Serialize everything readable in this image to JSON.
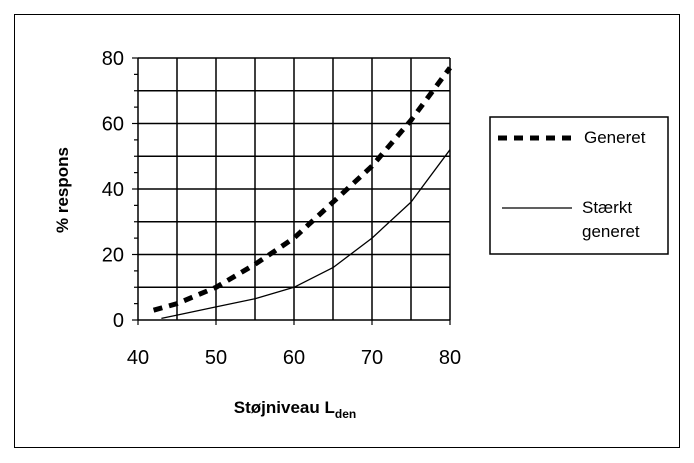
{
  "chart_data": {
    "type": "line",
    "title": "",
    "xlabel": "Støjniveau L",
    "xlabel_sub": "den",
    "ylabel": "% respons",
    "xlim": [
      40,
      80
    ],
    "ylim": [
      0,
      80
    ],
    "xticks": [
      "40",
      "50",
      "60",
      "70",
      "80"
    ],
    "yticks": [
      "0",
      "20",
      "40",
      "60",
      "80"
    ],
    "grid": true,
    "legend_position": "right",
    "series": [
      {
        "name": "Generet",
        "style": "dashed",
        "x": [
          42,
          45,
          50,
          55,
          60,
          65,
          70,
          75,
          80
        ],
        "y": [
          3,
          5,
          10,
          17,
          25,
          36,
          47,
          61,
          77
        ]
      },
      {
        "name": "Stærkt generet",
        "name_lines": [
          "Stærkt",
          "generet"
        ],
        "style": "solid",
        "x": [
          43,
          45,
          50,
          55,
          60,
          65,
          70,
          75,
          80
        ],
        "y": [
          0.5,
          1.5,
          4,
          6.5,
          10,
          16,
          25,
          36,
          52
        ]
      }
    ]
  }
}
